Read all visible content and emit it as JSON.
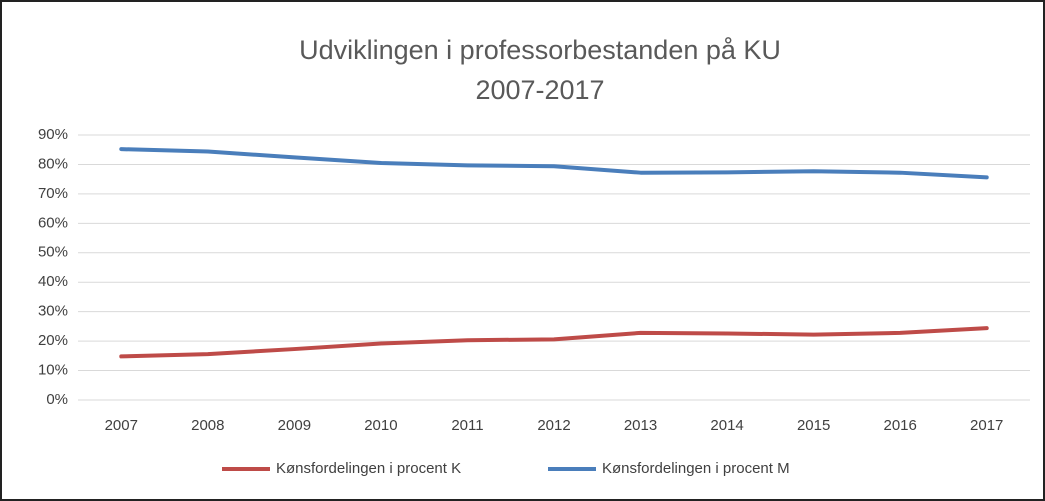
{
  "chart_data": {
    "type": "line",
    "title": [
      "Udviklingen i professorbestanden på KU",
      "2007-2017"
    ],
    "categories": [
      "2007",
      "2008",
      "2009",
      "2010",
      "2011",
      "2012",
      "2013",
      "2014",
      "2015",
      "2016",
      "2017"
    ],
    "series": [
      {
        "name": "Kønsfordelingen i procent K",
        "color": "#be4b48",
        "values": [
          14.8,
          15.6,
          17.3,
          19.2,
          20.3,
          20.6,
          22.8,
          22.6,
          22.2,
          22.8,
          24.4
        ]
      },
      {
        "name": "Kønsfordelingen i procent M",
        "color": "#4a7ebb",
        "values": [
          85.2,
          84.4,
          82.4,
          80.5,
          79.7,
          79.4,
          77.2,
          77.3,
          77.7,
          77.2,
          75.6
        ]
      }
    ],
    "ylim": [
      0,
      90
    ],
    "yticks": [
      {
        "value": 0,
        "label": "0%"
      },
      {
        "value": 10,
        "label": "10%"
      },
      {
        "value": 20,
        "label": "20%"
      },
      {
        "value": 30,
        "label": "30%"
      },
      {
        "value": 40,
        "label": "40%"
      },
      {
        "value": 50,
        "label": "50%"
      },
      {
        "value": 60,
        "label": "60%"
      },
      {
        "value": 70,
        "label": "70%"
      },
      {
        "value": 80,
        "label": "80%"
      },
      {
        "value": 90,
        "label": "90%"
      }
    ],
    "grid": true,
    "legend": "bottom"
  }
}
